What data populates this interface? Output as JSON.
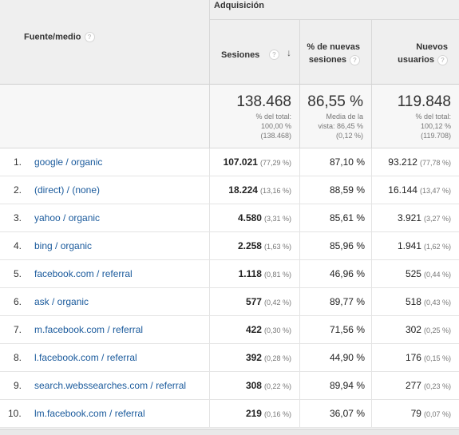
{
  "header": {
    "group_label": "Adquisición",
    "source_label": "Fuente/medio",
    "sessions_label": "Sesiones",
    "pct_new_label_line1": "% de nuevas",
    "pct_new_label_line2": "sesiones",
    "new_users_label_line1": "Nuevos",
    "new_users_label_line2": "usuarios",
    "help_glyph": "?",
    "sort_glyph": "↓"
  },
  "totals": {
    "sessions": "138.468",
    "sessions_sub1": "% del total:",
    "sessions_sub2": "100,00 %",
    "sessions_sub3": "(138.468)",
    "pct_new": "86,55 %",
    "pct_new_sub1": "Media de la",
    "pct_new_sub2": "vista: 86,45 %",
    "pct_new_sub3": "(0,12 %)",
    "new_users": "119.848",
    "new_users_sub1": "% del total:",
    "new_users_sub2": "100,12 %",
    "new_users_sub3": "(119.708)"
  },
  "rows": [
    {
      "num": "1.",
      "source": "google / organic",
      "sessions": "107.021",
      "sessions_pct": "(77,29 %)",
      "pct_new": "87,10 %",
      "new_users": "93.212",
      "new_users_pct": "(77,78 %)"
    },
    {
      "num": "2.",
      "source": "(direct) / (none)",
      "sessions": "18.224",
      "sessions_pct": "(13,16 %)",
      "pct_new": "88,59 %",
      "new_users": "16.144",
      "new_users_pct": "(13,47 %)"
    },
    {
      "num": "3.",
      "source": "yahoo / organic",
      "sessions": "4.580",
      "sessions_pct": "(3,31 %)",
      "pct_new": "85,61 %",
      "new_users": "3.921",
      "new_users_pct": "(3,27 %)"
    },
    {
      "num": "4.",
      "source": "bing / organic",
      "sessions": "2.258",
      "sessions_pct": "(1,63 %)",
      "pct_new": "85,96 %",
      "new_users": "1.941",
      "new_users_pct": "(1,62 %)"
    },
    {
      "num": "5.",
      "source": "facebook.com / referral",
      "sessions": "1.118",
      "sessions_pct": "(0,81 %)",
      "pct_new": "46,96 %",
      "new_users": "525",
      "new_users_pct": "(0,44 %)"
    },
    {
      "num": "6.",
      "source": "ask / organic",
      "sessions": "577",
      "sessions_pct": "(0,42 %)",
      "pct_new": "89,77 %",
      "new_users": "518",
      "new_users_pct": "(0,43 %)"
    },
    {
      "num": "7.",
      "source": "m.facebook.com / referral",
      "sessions": "422",
      "sessions_pct": "(0,30 %)",
      "pct_new": "71,56 %",
      "new_users": "302",
      "new_users_pct": "(0,25 %)"
    },
    {
      "num": "8.",
      "source": "l.facebook.com / referral",
      "sessions": "392",
      "sessions_pct": "(0,28 %)",
      "pct_new": "44,90 %",
      "new_users": "176",
      "new_users_pct": "(0,15 %)"
    },
    {
      "num": "9.",
      "source": "search.webssearches.com / referral",
      "sessions": "308",
      "sessions_pct": "(0,22 %)",
      "pct_new": "89,94 %",
      "new_users": "277",
      "new_users_pct": "(0,23 %)"
    },
    {
      "num": "10.",
      "source": "lm.facebook.com / referral",
      "sessions": "219",
      "sessions_pct": "(0,16 %)",
      "pct_new": "36,07 %",
      "new_users": "79",
      "new_users_pct": "(0,07 %)"
    }
  ],
  "colors": {
    "link": "#1a5a9c",
    "header_bg": "#efefef",
    "totals_bg": "#f7f7f7"
  }
}
